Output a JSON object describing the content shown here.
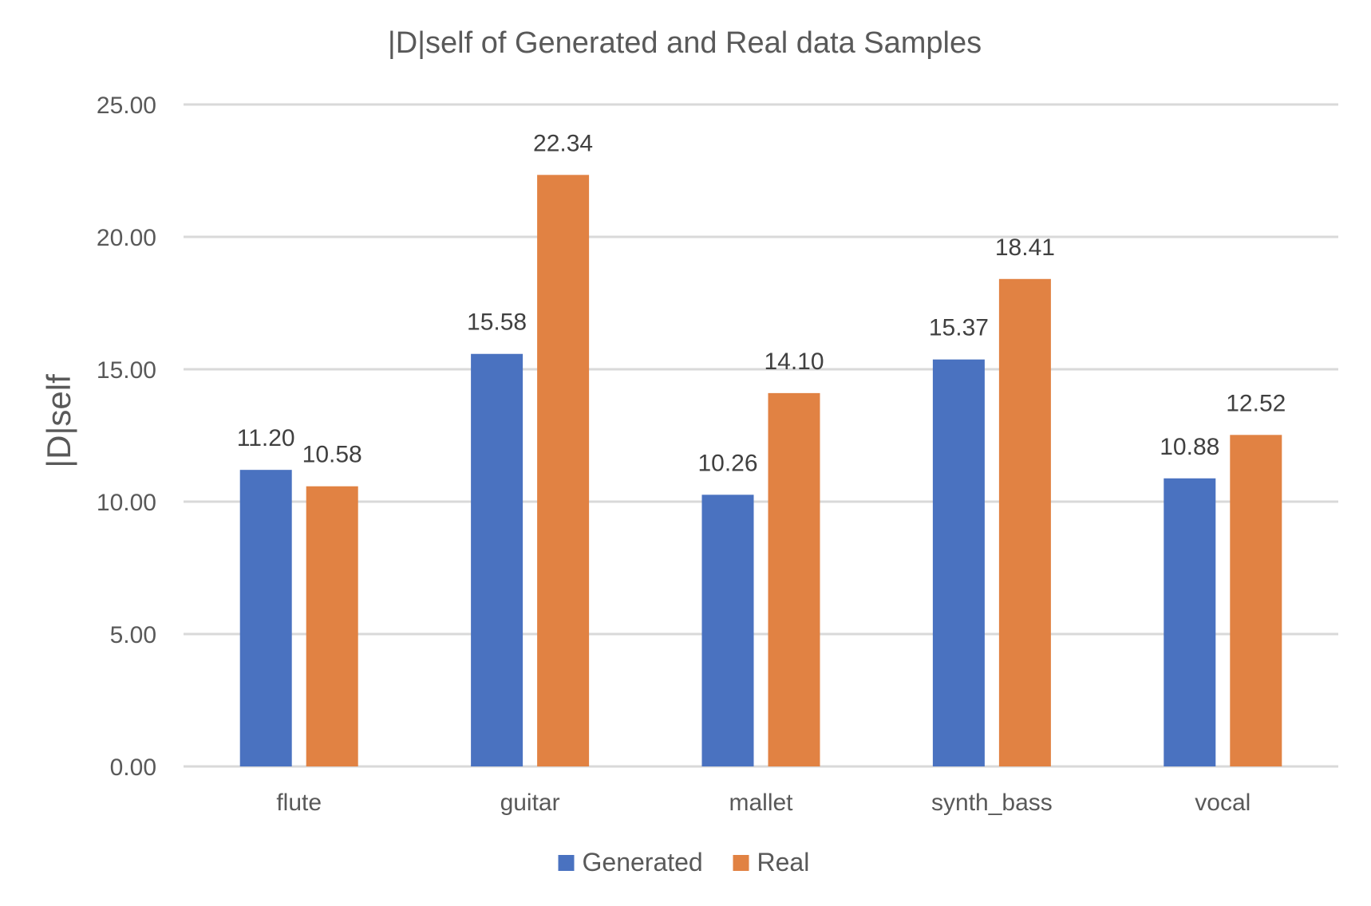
{
  "chart_data": {
    "type": "bar",
    "title": "|D|self of Generated and Real data Samples",
    "xlabel": "",
    "ylabel": "|D|self",
    "categories": [
      "flute",
      "guitar",
      "mallet",
      "synth_bass",
      "vocal"
    ],
    "series": [
      {
        "name": "Generated",
        "color": "#4a72c0",
        "values": [
          11.2,
          15.58,
          10.26,
          15.37,
          10.88
        ],
        "labels": [
          "11.20",
          "15.58",
          "10.26",
          "15.37",
          "10.88"
        ]
      },
      {
        "name": "Real",
        "color": "#e18243",
        "values": [
          10.58,
          22.34,
          14.1,
          18.41,
          12.52
        ],
        "labels": [
          "10.58",
          "22.34",
          "14.10",
          "18.41",
          "12.52"
        ]
      }
    ],
    "ylim": [
      0,
      25
    ],
    "yticks": [
      "0.00",
      "5.00",
      "10.00",
      "15.00",
      "20.00",
      "25.00"
    ],
    "grid": true,
    "legend_position": "bottom"
  }
}
